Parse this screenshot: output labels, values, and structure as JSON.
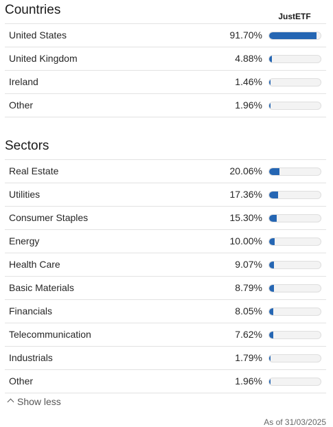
{
  "countries": {
    "title": "Countries",
    "source_label": "JustETF",
    "rows": [
      {
        "label": "United States",
        "value": "91.70%",
        "pct": 91.7
      },
      {
        "label": "United Kingdom",
        "value": "4.88%",
        "pct": 4.88
      },
      {
        "label": "Ireland",
        "value": "1.46%",
        "pct": 1.46
      },
      {
        "label": "Other",
        "value": "1.96%",
        "pct": 1.96
      }
    ]
  },
  "sectors": {
    "title": "Sectors",
    "rows": [
      {
        "label": "Real Estate",
        "value": "20.06%",
        "pct": 20.06
      },
      {
        "label": "Utilities",
        "value": "17.36%",
        "pct": 17.36
      },
      {
        "label": "Consumer Staples",
        "value": "15.30%",
        "pct": 15.3
      },
      {
        "label": "Energy",
        "value": "10.00%",
        "pct": 10.0
      },
      {
        "label": "Health Care",
        "value": "9.07%",
        "pct": 9.07
      },
      {
        "label": "Basic Materials",
        "value": "8.79%",
        "pct": 8.79
      },
      {
        "label": "Financials",
        "value": "8.05%",
        "pct": 8.05
      },
      {
        "label": "Telecommunication",
        "value": "7.62%",
        "pct": 7.62
      },
      {
        "label": "Industrials",
        "value": "1.79%",
        "pct": 1.79
      },
      {
        "label": "Other",
        "value": "1.96%",
        "pct": 1.96
      }
    ]
  },
  "footer": {
    "show_less_label": "Show less",
    "as_of": "As of 31/03/2025"
  },
  "colors": {
    "bar_fill": "#2566b3",
    "bar_track": "#f3f3f3"
  },
  "icons": {
    "show_less": "chevron-up-icon"
  }
}
